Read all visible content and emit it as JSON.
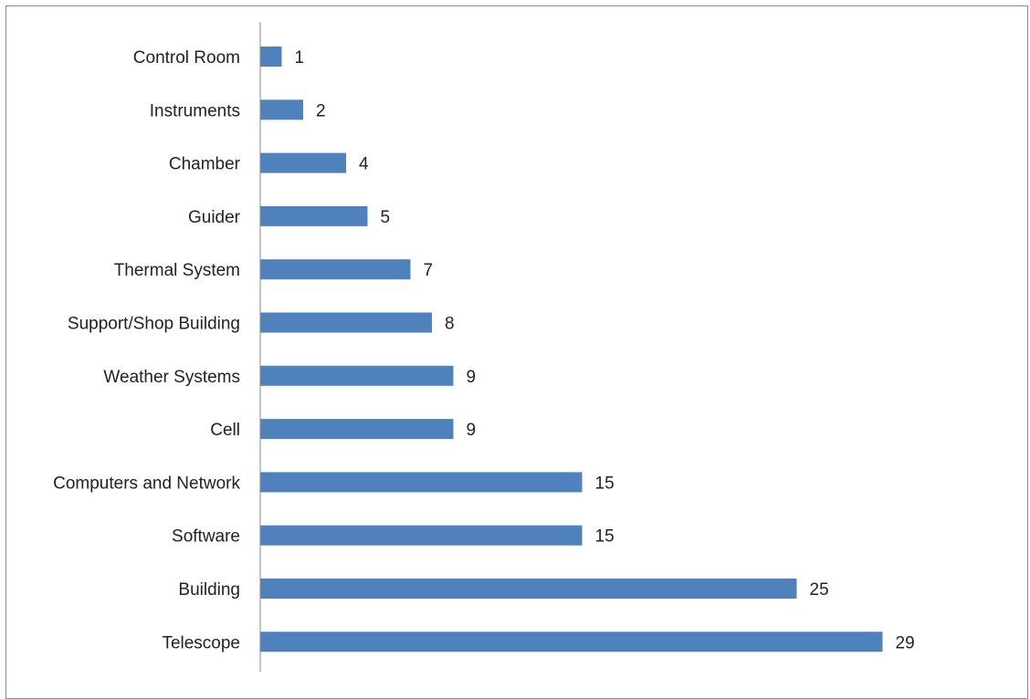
{
  "chart_data": {
    "type": "bar",
    "orientation": "horizontal",
    "categories": [
      "Control Room",
      "Instruments",
      "Chamber",
      "Guider",
      "Thermal System",
      "Support/Shop Building",
      "Weather Systems",
      "Cell",
      "Computers and Network",
      "Software",
      "Building",
      "Telescope"
    ],
    "values": [
      1,
      2,
      4,
      5,
      7,
      8,
      9,
      9,
      15,
      15,
      25,
      29
    ],
    "data_labels": [
      "1",
      "2",
      "4",
      "5",
      "7",
      "8",
      "9",
      "9",
      "15",
      "15",
      "25",
      "29"
    ],
    "title": "",
    "xlabel": "",
    "ylabel": "",
    "xlim": [
      0,
      30
    ],
    "grid": false,
    "legend": "none",
    "bar_color": "#4F81BD",
    "axis_color": "#888888"
  }
}
